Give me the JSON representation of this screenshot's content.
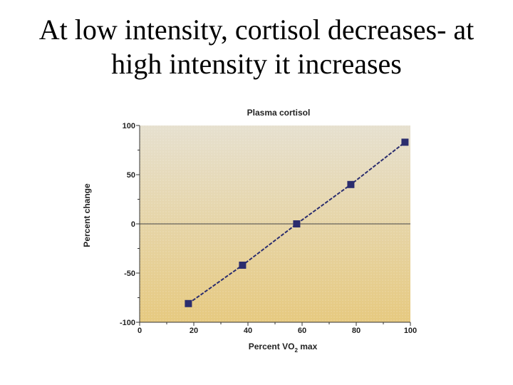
{
  "slide": {
    "title_line1": "At low intensity, cortisol decreases- at",
    "title_line2": "high intensity it increases"
  },
  "chart_data": {
    "type": "line",
    "title": "Plasma cortisol",
    "xlabel": "Percent VO2 max",
    "xlabel_main": "Percent V",
    "xlabel_o": "O",
    "xlabel_sub": "2",
    "xlabel_end": " max",
    "ylabel": "Percent change",
    "xlim": [
      0,
      100
    ],
    "ylim": [
      -100,
      100
    ],
    "xticks": [
      0,
      20,
      40,
      60,
      80,
      100
    ],
    "yticks": [
      100,
      50,
      0,
      -50,
      -100
    ],
    "grid": false,
    "series": [
      {
        "x": [
          18,
          38,
          58,
          78,
          98
        ],
        "y": [
          -81,
          -42,
          0,
          40,
          83
        ],
        "color": "#2b2d6e"
      }
    ],
    "background_gradient": [
      "#e6e0cf",
      "#e6c97f"
    ]
  }
}
